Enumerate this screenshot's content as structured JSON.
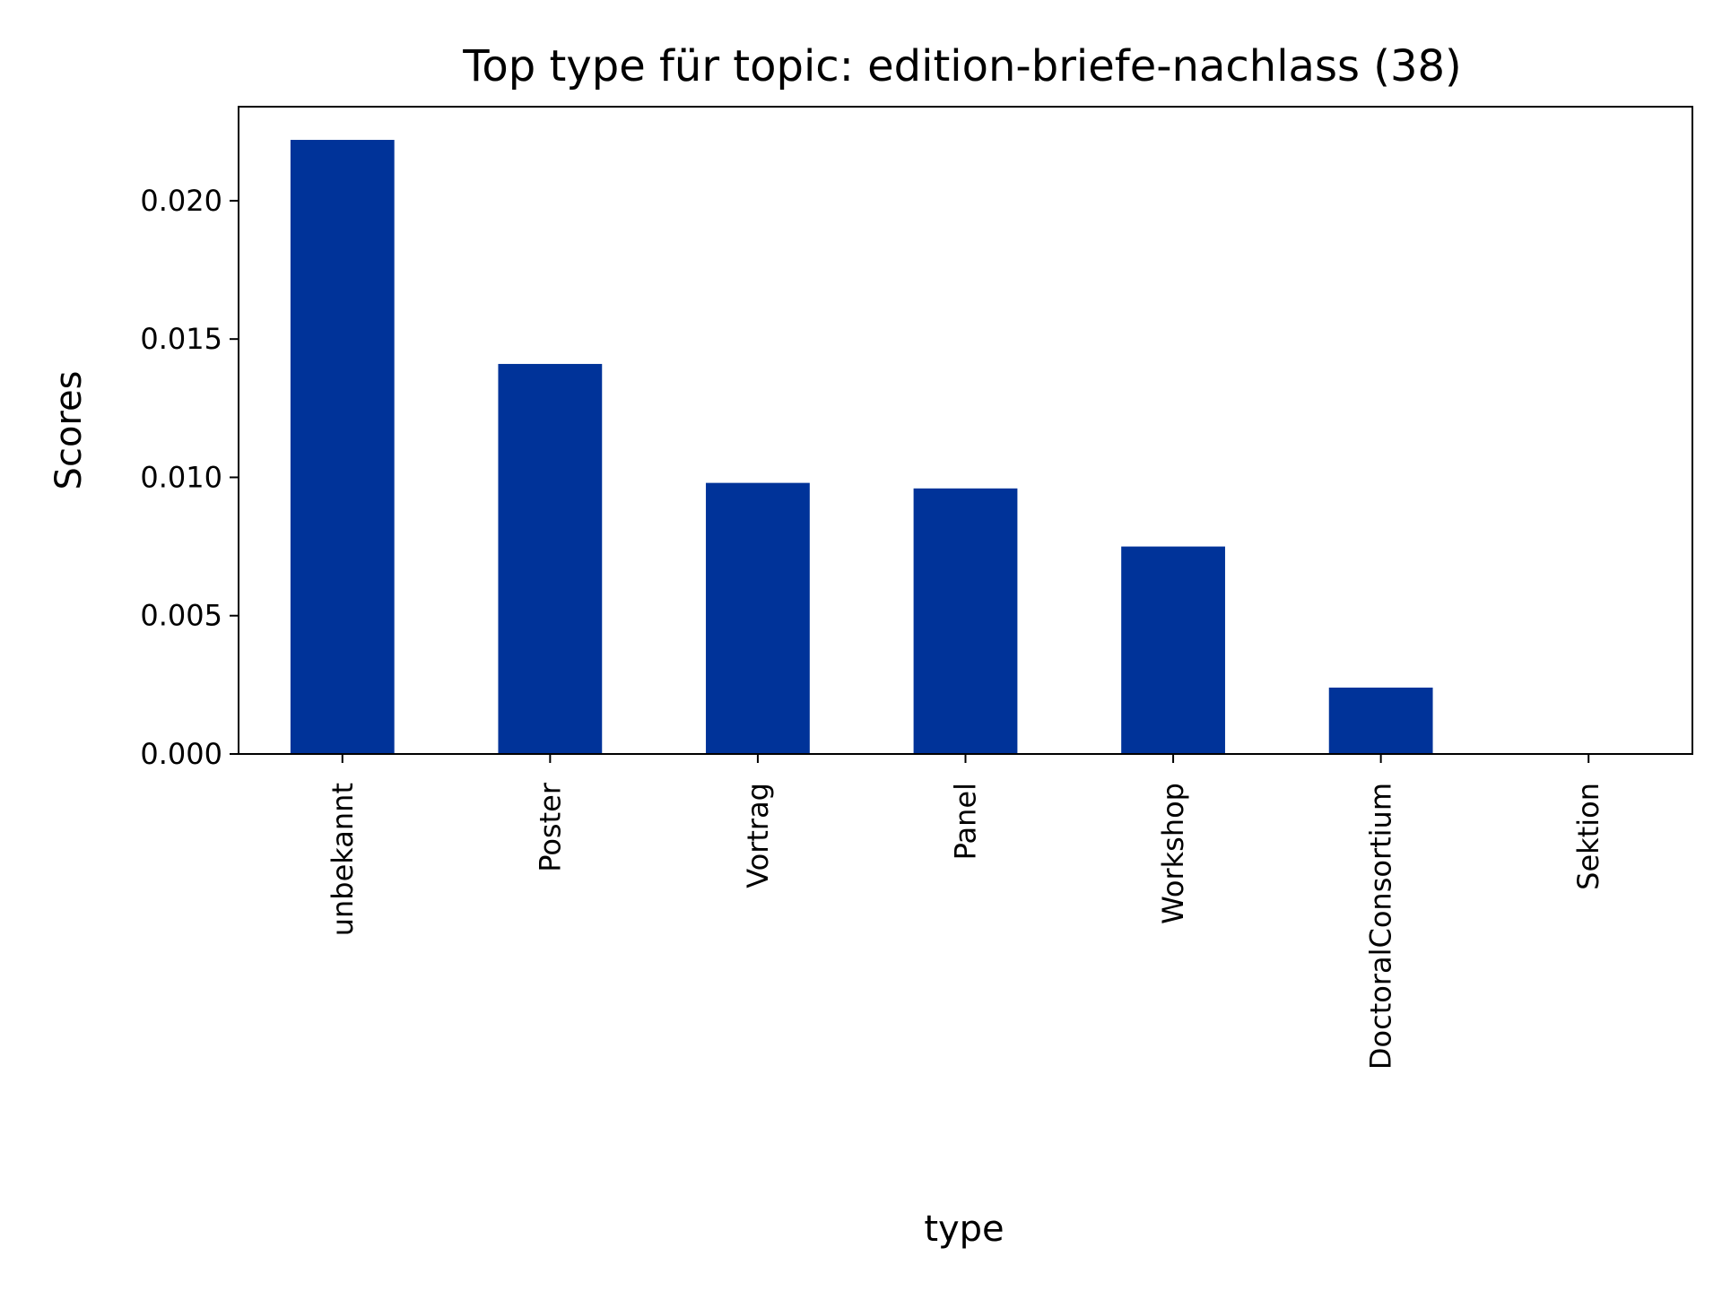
{
  "chart_data": {
    "type": "bar",
    "title": "Top type für topic: edition-briefe-nachlass (38)",
    "xlabel": "type",
    "ylabel": "Scores",
    "categories": [
      "unbekannt",
      "Poster",
      "Vortrag",
      "Panel",
      "Workshop",
      "DoctoralConsortium",
      "Sektion"
    ],
    "values": [
      0.0222,
      0.0141,
      0.0098,
      0.0096,
      0.0075,
      0.0024,
      0.0
    ],
    "ylim": [
      0,
      0.0234
    ],
    "yticks": [
      "0.000",
      "0.005",
      "0.010",
      "0.015",
      "0.020"
    ],
    "ytick_values": [
      0,
      0.005,
      0.01,
      0.015,
      0.02
    ],
    "bar_color": "#003399",
    "grid": false,
    "legend": "none"
  }
}
